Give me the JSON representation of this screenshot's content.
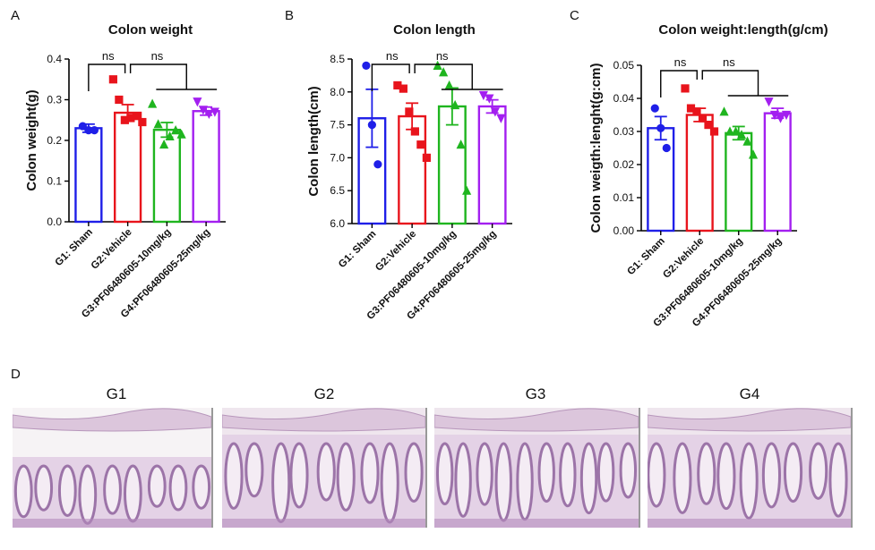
{
  "panel_labels": [
    "A",
    "B",
    "C",
    "D"
  ],
  "image_labels": [
    "G1",
    "G2",
    "G3",
    "G4"
  ],
  "chart_data": [
    {
      "type": "bar",
      "title": "Colon weight",
      "y_label": "Colon weight(g)",
      "categories": [
        "G1: Sham",
        "G2:Vehicle",
        "G3:PF06480605-10mg/kg",
        "G4:PF06480605-25mg/kg"
      ],
      "colors": [
        "#1f1fe8",
        "#e8141c",
        "#1fb51f",
        "#a31ff0"
      ],
      "markers": [
        "circle",
        "square",
        "triangle",
        "triangle-down"
      ],
      "values": [
        0.23,
        0.268,
        0.226,
        0.272
      ],
      "errors": [
        0.01,
        0.02,
        0.018,
        0.01
      ],
      "points": [
        [
          0.235,
          0.225,
          0.225
        ],
        [
          0.35,
          0.3,
          0.25,
          0.255,
          0.26,
          0.245
        ],
        [
          0.29,
          0.24,
          0.19,
          0.21,
          0.225,
          0.215
        ],
        [
          0.295,
          0.275,
          0.265,
          0.27
        ]
      ],
      "annotations": [
        "ns",
        "ns"
      ],
      "ylim": [
        0,
        0.4
      ],
      "yticks": [
        {
          "value": 0,
          "label": "0.0"
        },
        0.1,
        0.2,
        0.3,
        0.4
      ]
    },
    {
      "type": "bar",
      "title": "Colon length",
      "y_label": "Colon length(cm)",
      "categories": [
        "G1: Sham",
        "G2:Vehicle",
        "G3:PF06480605-10mg/kg",
        "G4:PF06480605-25mg/kg"
      ],
      "colors": [
        "#1f1fe8",
        "#e8141c",
        "#1fb51f",
        "#a31ff0"
      ],
      "markers": [
        "circle",
        "square",
        "triangle",
        "triangle-down"
      ],
      "values": [
        7.6,
        7.63,
        7.78,
        7.78
      ],
      "errors": [
        0.44,
        0.2,
        0.28,
        0.1
      ],
      "points": [
        [
          8.4,
          7.5,
          6.9
        ],
        [
          8.1,
          8.05,
          7.7,
          7.4,
          7.2,
          7.0
        ],
        [
          8.4,
          8.3,
          8.1,
          7.8,
          7.2,
          6.5
        ],
        [
          7.95,
          7.9,
          7.7,
          7.6
        ]
      ],
      "annotations": [
        "ns",
        "ns"
      ],
      "ylim": [
        6.0,
        8.5
      ],
      "yticks": [
        {
          "value": 6,
          "label": "6.0"
        },
        6.5,
        {
          "value": 7,
          "label": "7.0"
        },
        7.5,
        {
          "value": 8,
          "label": "8.0"
        },
        8.5
      ]
    },
    {
      "type": "bar",
      "title": "Colon weight:length(g/cm)",
      "y_label": "Colon weigth:lenght(g:cm)",
      "categories": [
        "G1: Sham",
        "G2:Vehicle",
        "G3:PF06480605-10mg/kg",
        "G4:PF06480605-25mg/kg"
      ],
      "colors": [
        "#1f1fe8",
        "#e8141c",
        "#1fb51f",
        "#a31ff0"
      ],
      "markers": [
        "circle",
        "square",
        "triangle",
        "triangle-down"
      ],
      "values": [
        0.031,
        0.035,
        0.0295,
        0.0355
      ],
      "errors": [
        0.0035,
        0.002,
        0.002,
        0.0015
      ],
      "points": [
        [
          0.037,
          0.031,
          0.025
        ],
        [
          0.043,
          0.037,
          0.036,
          0.034,
          0.032,
          0.03
        ],
        [
          0.036,
          0.03,
          0.03,
          0.029,
          0.027,
          0.023
        ],
        [
          0.039,
          0.035,
          0.034,
          0.035
        ]
      ],
      "annotations": [
        "ns",
        "ns"
      ],
      "ylim": [
        0,
        0.05
      ],
      "yticks": [
        {
          "value": 0,
          "label": "0.00"
        },
        0.01,
        0.02,
        0.03,
        0.04,
        0.05
      ]
    }
  ]
}
